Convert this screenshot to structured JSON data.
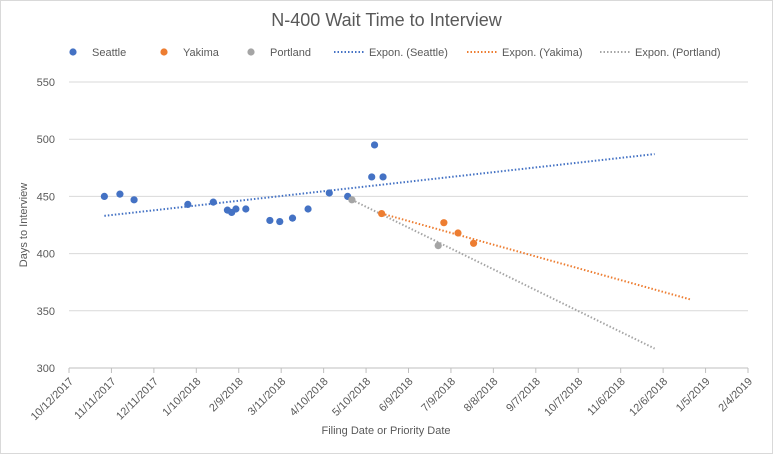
{
  "chart_data": {
    "type": "scatter",
    "title": "N-400 Wait Time to Interview",
    "xlabel": "Filing Date or Priority Date",
    "ylabel": "Days to Interview",
    "ylim": [
      300,
      550
    ],
    "yticks": [
      300,
      350,
      400,
      450,
      500,
      550
    ],
    "xlim": [
      "2017-10-12",
      "2019-02-04"
    ],
    "xticks": [
      "10/12/2017",
      "11/11/2017",
      "12/11/2017",
      "1/10/2018",
      "2/9/2018",
      "3/11/2018",
      "4/10/2018",
      "5/10/2018",
      "6/9/2018",
      "7/9/2018",
      "8/8/2018",
      "9/7/2018",
      "10/7/2018",
      "11/6/2018",
      "12/6/2018",
      "1/5/2019",
      "2/4/2019"
    ],
    "grid": "horizontal",
    "legend_position": "top",
    "series": [
      {
        "name": "Seattle",
        "color": "#4472c4",
        "points": [
          [
            "2017-11-06",
            450
          ],
          [
            "2017-11-17",
            452
          ],
          [
            "2017-11-27",
            447
          ],
          [
            "2018-01-04",
            443
          ],
          [
            "2018-01-22",
            445
          ],
          [
            "2018-02-01",
            438
          ],
          [
            "2018-02-04",
            436
          ],
          [
            "2018-02-07",
            439
          ],
          [
            "2018-02-14",
            439
          ],
          [
            "2018-03-03",
            429
          ],
          [
            "2018-03-10",
            428
          ],
          [
            "2018-03-19",
            431
          ],
          [
            "2018-03-30",
            439
          ],
          [
            "2018-04-14",
            453
          ],
          [
            "2018-04-27",
            450
          ],
          [
            "2018-05-14",
            467
          ],
          [
            "2018-05-16",
            495
          ],
          [
            "2018-05-22",
            467
          ]
        ]
      },
      {
        "name": "Yakima",
        "color": "#ed7d31",
        "points": [
          [
            "2018-05-21",
            435
          ],
          [
            "2018-07-04",
            427
          ],
          [
            "2018-07-14",
            418
          ],
          [
            "2018-07-25",
            409
          ]
        ]
      },
      {
        "name": "Portland",
        "color": "#a5a5a5",
        "points": [
          [
            "2018-04-30",
            447
          ],
          [
            "2018-06-30",
            407
          ]
        ]
      }
    ],
    "trendlines": [
      {
        "name": "Expon. (Seattle)",
        "color": "#4472c4",
        "from": [
          "2017-11-06",
          433
        ],
        "to": [
          "2018-11-30",
          487
        ]
      },
      {
        "name": "Expon. (Yakima)",
        "color": "#ed7d31",
        "from": [
          "2018-05-21",
          435
        ],
        "to": [
          "2018-12-25",
          360
        ]
      },
      {
        "name": "Expon. (Portland)",
        "color": "#a5a5a5",
        "from": [
          "2018-04-30",
          447
        ],
        "to": [
          "2018-11-30",
          317
        ]
      }
    ]
  }
}
